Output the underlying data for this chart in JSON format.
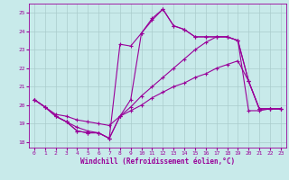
{
  "background_color": "#c8eaea",
  "grid_color": "#aacccc",
  "line_color": "#990099",
  "xlabel": "Windchill (Refroidissement éolien,°C)",
  "xlim": [
    -0.5,
    23.5
  ],
  "ylim": [
    17.7,
    25.5
  ],
  "yticks": [
    18,
    19,
    20,
    21,
    22,
    23,
    24,
    25
  ],
  "xticks": [
    0,
    1,
    2,
    3,
    4,
    5,
    6,
    7,
    8,
    9,
    10,
    11,
    12,
    13,
    14,
    15,
    16,
    17,
    18,
    19,
    20,
    21,
    22,
    23
  ],
  "series1_x": [
    0,
    1,
    2,
    3,
    4,
    5,
    6,
    7,
    8,
    9,
    10,
    11,
    12,
    13,
    14,
    15,
    16,
    17,
    18,
    19,
    20,
    21,
    22,
    23
  ],
  "series1_y": [
    20.3,
    19.9,
    19.4,
    19.1,
    18.6,
    18.5,
    18.5,
    18.2,
    19.4,
    19.9,
    20.5,
    21.0,
    21.5,
    22.0,
    22.5,
    23.0,
    23.4,
    23.7,
    23.7,
    23.5,
    19.7,
    19.7,
    19.8,
    19.8
  ],
  "series2_x": [
    0,
    1,
    2,
    3,
    4,
    5,
    6,
    7,
    8,
    9,
    10,
    11,
    12,
    13,
    14,
    15,
    16,
    17,
    18,
    19,
    20,
    21,
    22,
    23
  ],
  "series2_y": [
    20.3,
    19.9,
    19.5,
    19.4,
    19.2,
    19.1,
    19.0,
    18.9,
    19.4,
    19.7,
    20.0,
    20.4,
    20.7,
    21.0,
    21.2,
    21.5,
    21.7,
    22.0,
    22.2,
    22.4,
    21.3,
    19.8,
    19.8,
    19.8
  ],
  "series3_x": [
    0,
    1,
    2,
    3,
    4,
    5,
    6,
    7,
    8,
    9,
    10,
    11,
    12,
    13,
    14,
    15,
    16,
    17,
    18,
    19,
    20,
    21,
    22,
    23
  ],
  "series3_y": [
    20.3,
    19.9,
    19.4,
    19.1,
    18.8,
    18.6,
    18.5,
    18.2,
    19.4,
    20.3,
    23.9,
    24.7,
    25.2,
    24.3,
    24.1,
    23.7,
    23.7,
    23.7,
    23.7,
    23.5,
    21.3,
    19.8,
    19.8,
    19.8
  ],
  "series4_x": [
    0,
    1,
    2,
    3,
    4,
    5,
    6,
    7,
    8,
    9,
    10,
    11,
    12,
    13,
    14,
    15,
    16,
    17,
    18,
    19,
    20,
    21,
    22,
    23
  ],
  "series4_y": [
    20.3,
    19.9,
    19.4,
    19.1,
    18.6,
    18.5,
    18.5,
    18.2,
    23.3,
    23.2,
    23.9,
    24.6,
    25.2,
    24.3,
    24.1,
    23.7,
    23.7,
    23.7,
    23.7,
    23.5,
    21.3,
    19.8,
    19.8,
    19.8
  ]
}
